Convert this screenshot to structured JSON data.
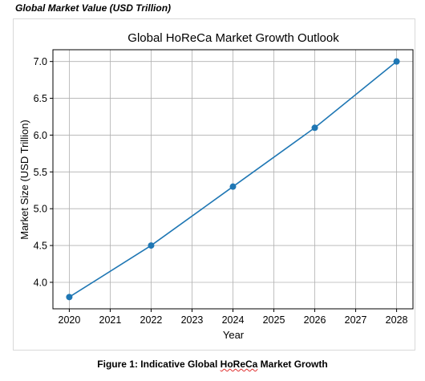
{
  "heading": "Global Market Value (USD Trillion)",
  "caption": {
    "prefix": "Figure 1: Indicative Global ",
    "flagged_word": "HoReCa",
    "suffix": " Market Growth"
  },
  "colors": {
    "series": "#1f77b4",
    "grid": "#b0b0b0",
    "spellcheck": "#e03030"
  },
  "chart_data": {
    "type": "line",
    "title": "Global HoReCa Market Growth Outlook",
    "xlabel": "Year",
    "ylabel": "Market Size (USD Trillion)",
    "x": [
      2020,
      2022,
      2024,
      2026,
      2028
    ],
    "series": [
      {
        "values": [
          3.8,
          4.5,
          5.3,
          6.1,
          7.0
        ]
      }
    ],
    "xticks": [
      "2020",
      "2021",
      "2022",
      "2023",
      "2024",
      "2025",
      "2026",
      "2027",
      "2028"
    ],
    "yticks": [
      "4.0",
      "4.5",
      "5.0",
      "5.5",
      "6.0",
      "6.5",
      "7.0"
    ],
    "xlim": [
      2019.6,
      2028.4
    ],
    "ylim": [
      3.64,
      7.16
    ],
    "grid": true,
    "markers": "circle"
  }
}
